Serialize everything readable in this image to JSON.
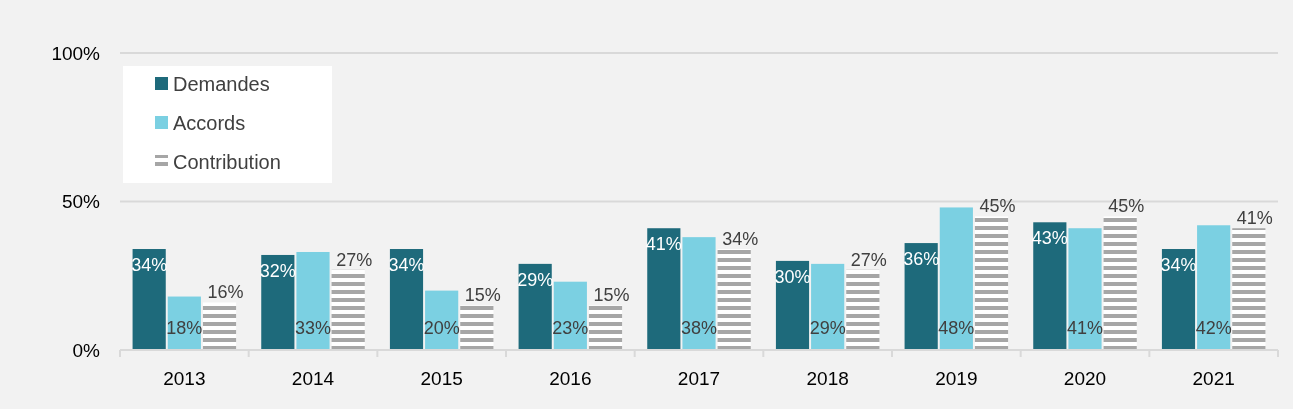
{
  "chart_data": {
    "type": "bar",
    "categories": [
      "2013",
      "2014",
      "2015",
      "2016",
      "2017",
      "2018",
      "2019",
      "2020",
      "2021"
    ],
    "series": [
      {
        "name": "Demandes",
        "color": "#1e6a7b",
        "values": [
          34,
          32,
          34,
          29,
          41,
          30,
          36,
          43,
          34
        ],
        "value_labels": [
          "34%",
          "32%",
          "34%",
          "29%",
          "41%",
          "30%",
          "36%",
          "43%",
          "34%"
        ]
      },
      {
        "name": "Accords",
        "color": "#7bd0e2",
        "values": [
          18,
          33,
          20,
          23,
          38,
          29,
          48,
          41,
          42
        ],
        "value_labels": [
          "18%",
          "33%",
          "20%",
          "23%",
          "38%",
          "29%",
          "48%",
          "41%",
          "42%"
        ]
      },
      {
        "name": "Contribution",
        "color": "#a6a6a6",
        "values": [
          16,
          27,
          15,
          15,
          34,
          27,
          45,
          45,
          41
        ],
        "value_labels": [
          "16%",
          "27%",
          "15%",
          "15%",
          "34%",
          "27%",
          "45%",
          "45%",
          "41%"
        ]
      }
    ],
    "ylim": [
      0,
      100
    ],
    "yticks": [
      {
        "value": 0,
        "label": "0%"
      },
      {
        "value": 50,
        "label": "50%"
      },
      {
        "value": 100,
        "label": "100%"
      }
    ],
    "grid": "y",
    "legend": "top left"
  }
}
